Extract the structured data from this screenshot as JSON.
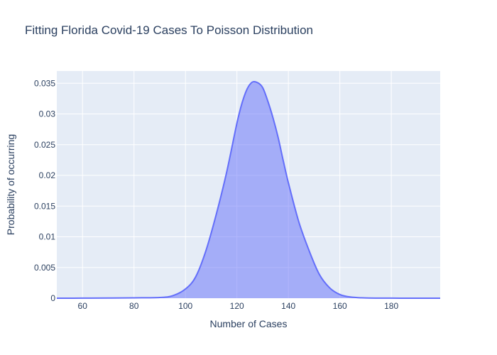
{
  "chart_data": {
    "type": "area",
    "title": "Fitting Florida Covid-19 Cases To Poisson Distribution",
    "xlabel": "Number of Cases",
    "ylabel": "Probability of occurring",
    "xlim": [
      50,
      199
    ],
    "ylim": [
      0,
      0.037
    ],
    "x_ticks": [
      60,
      80,
      100,
      120,
      140,
      160,
      180
    ],
    "x_tick_labels": [
      "60",
      "80",
      "100",
      "120",
      "140",
      "160",
      "180"
    ],
    "y_ticks": [
      0,
      0.005,
      0.01,
      0.015,
      0.02,
      0.025,
      0.03,
      0.035
    ],
    "y_tick_labels": [
      "0",
      "0.005",
      "0.01",
      "0.015",
      "0.02",
      "0.025",
      "0.03",
      "0.035"
    ],
    "grid": true,
    "colors": {
      "line": "#636efa",
      "fill": "rgba(99,110,250,0.5)",
      "plot_bg": "#e5ecf6",
      "grid": "#ffffff"
    },
    "series": [
      {
        "x": [
          50,
          60,
          70,
          80,
          90,
          95,
          100,
          104,
          108,
          112,
          116,
          120,
          122,
          124,
          126,
          128,
          130,
          132,
          134,
          136,
          138,
          140,
          144,
          148,
          152,
          156,
          160,
          164,
          170,
          180,
          190,
          199
        ],
        "values": [
          0,
          1e-05,
          3e-05,
          6e-05,
          0.00012,
          0.0004,
          0.0015,
          0.0035,
          0.0078,
          0.0137,
          0.0205,
          0.0285,
          0.0318,
          0.0341,
          0.0352,
          0.0351,
          0.0343,
          0.0321,
          0.0294,
          0.0262,
          0.0224,
          0.0188,
          0.0125,
          0.0078,
          0.0039,
          0.0017,
          0.0006,
          0.0002,
          4e-05,
          1e-05,
          0,
          0
        ]
      }
    ]
  }
}
